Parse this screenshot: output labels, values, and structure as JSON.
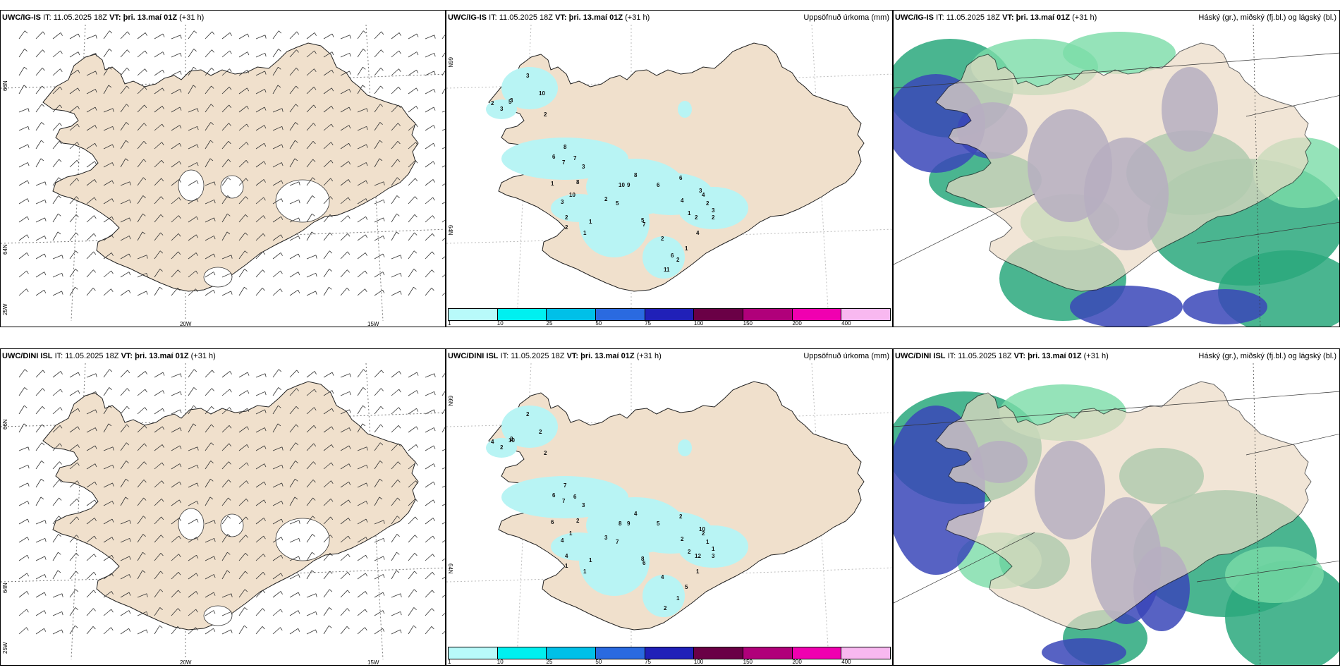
{
  "rows": [
    {
      "model": "UWC/IG-IS",
      "it_label": "IT:",
      "it_value": "11.05.2025 18Z",
      "vt_label": "VT:",
      "vt_value": "þri. 13.maí 01Z",
      "lead": "(+31 h)",
      "precip_labels": [
        "3",
        "10",
        "5",
        "2",
        "3",
        "3",
        "2",
        "8",
        "6",
        "7",
        "7",
        "3",
        "8",
        "1",
        "10",
        "3",
        "2",
        "2",
        "5",
        "8",
        "9",
        "10",
        "6",
        "2",
        "4",
        "3",
        "2",
        "1",
        "1",
        "7",
        "2",
        "5",
        "6",
        "4",
        "1",
        "2",
        "1",
        "2",
        "4",
        "3",
        "2",
        "11",
        "6"
      ]
    },
    {
      "model": "UWC/DINI ISL",
      "it_label": "IT:",
      "it_value": "11.05.2025 18Z",
      "vt_label": "VT:",
      "vt_value": "þri. 13.maí 01Z",
      "lead": "(+31 h)",
      "precip_labels": [
        "2",
        "2",
        "10",
        "4",
        "2",
        "2",
        "2",
        "7",
        "6",
        "7",
        "6",
        "3",
        "2",
        "6",
        "1",
        "4",
        "4",
        "1",
        "7",
        "4",
        "9",
        "8",
        "5",
        "3",
        "2",
        "10",
        "1",
        "1",
        "1",
        "6",
        "4",
        "8",
        "2",
        "2",
        "2",
        "12",
        "5",
        "1",
        "1",
        "1",
        "3",
        "2"
      ]
    }
  ],
  "precip_title": "Uppsöfnuð úrkoma (mm)",
  "cloud_title": "Háský (gr.), miðský (fj.bl.) og lágský (bl.)",
  "lat_labels": [
    "66N",
    "64N",
    "25W"
  ],
  "lon_labels": [
    "20W",
    "15W"
  ],
  "precip_lat_labels": [
    "66N",
    "64N"
  ],
  "colorbar": {
    "ticks": [
      "1",
      "10",
      "25",
      "50",
      "75",
      "100",
      "150",
      "200",
      "400"
    ],
    "colors": [
      "#b8fafa",
      "#00f0f0",
      "#00c0e8",
      "#2a6ae0",
      "#2020b8",
      "#6a0046",
      "#b0007a",
      "#f000b0",
      "#f8b8f0"
    ]
  },
  "colors": {
    "land": "#f0e0cc",
    "land_dark": "#ecdbc5",
    "precip": "#b8f4f4",
    "cloud_low": "#3a46b8",
    "cloud_mid": "#2aa87c",
    "cloud_high": "#7adca8"
  }
}
